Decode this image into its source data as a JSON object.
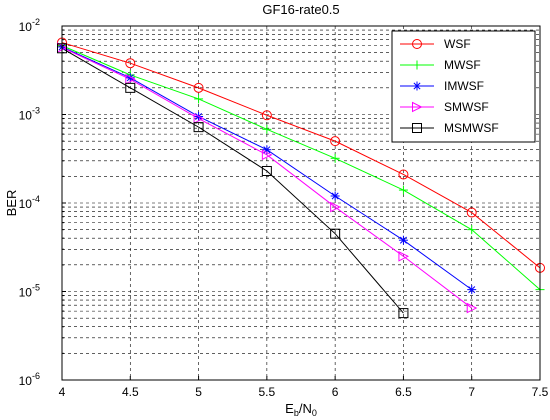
{
  "chart_data": {
    "type": "line",
    "title": "GF16-rate0.5",
    "xlabel": "E",
    "xlabel_sub1": "b",
    "xlabel_mid": "/N",
    "xlabel_sub2": "0",
    "ylabel": "BER",
    "xlim": [
      4,
      7.5
    ],
    "ylim": [
      1e-06,
      0.01
    ],
    "yscale": "log",
    "grid": true,
    "legend_position": "top-right",
    "x_ticks": [
      "4",
      "4.5",
      "5",
      "5.5",
      "6",
      "6.5",
      "7",
      "7.5"
    ],
    "y_ticks": [
      {
        "base": "10",
        "exp": "-6",
        "value": 1e-06
      },
      {
        "base": "10",
        "exp": "-5",
        "value": 1e-05
      },
      {
        "base": "10",
        "exp": "-4",
        "value": 0.0001
      },
      {
        "base": "10",
        "exp": "-3",
        "value": 0.001
      },
      {
        "base": "10",
        "exp": "-2",
        "value": 0.01
      }
    ],
    "series": [
      {
        "name": "WSF",
        "color": "#ff0000",
        "marker": "circle",
        "x": [
          4,
          4.5,
          5,
          5.5,
          6,
          6.5,
          7,
          7.5
        ],
        "y": [
          0.0065,
          0.0038,
          0.002,
          0.00098,
          0.0005,
          0.00021,
          7.8e-05,
          1.85e-05
        ]
      },
      {
        "name": "MWSF",
        "color": "#00ff00",
        "marker": "plus",
        "x": [
          4,
          4.5,
          5,
          5.5,
          6,
          6.5,
          7,
          7.5
        ],
        "y": [
          0.006,
          0.0028,
          0.0015,
          0.00068,
          0.00032,
          0.00014,
          5e-05,
          1.05e-05
        ]
      },
      {
        "name": "IMWSF",
        "color": "#0000ff",
        "marker": "asterisk",
        "x": [
          4,
          4.5,
          5,
          5.5,
          6,
          6.5,
          7
        ],
        "y": [
          0.0058,
          0.0026,
          0.00095,
          0.0004,
          0.00012,
          3.8e-05,
          1.05e-05
        ]
      },
      {
        "name": "SMWSF",
        "color": "#ff00ff",
        "marker": "triangle-right",
        "x": [
          4,
          4.5,
          5,
          5.5,
          6,
          6.5,
          7
        ],
        "y": [
          0.0057,
          0.0025,
          0.0009,
          0.00035,
          9e-05,
          2.5e-05,
          6.5e-06
        ]
      },
      {
        "name": "MSMWSF",
        "color": "#000000",
        "marker": "square",
        "x": [
          4,
          4.5,
          5,
          5.5,
          6,
          6.5
        ],
        "y": [
          0.0056,
          0.002,
          0.00072,
          0.00023,
          4.5e-05,
          5.7e-06
        ]
      }
    ]
  }
}
